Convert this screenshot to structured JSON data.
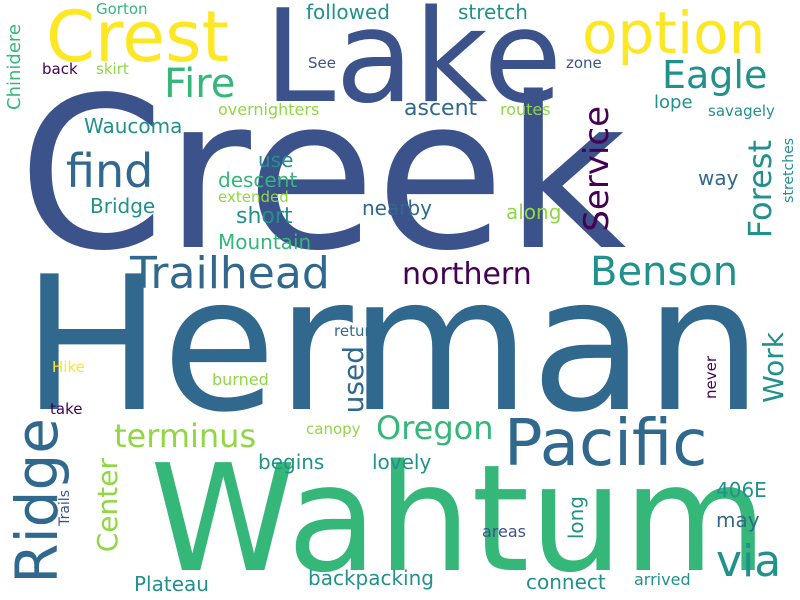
{
  "palette": {
    "dark_purple": "#440154",
    "indigo": "#3b528b",
    "blue": "#31688e",
    "teal": "#21918c",
    "green": "#35b779",
    "lime": "#90d743",
    "yellow": "#fde725"
  },
  "words": {
    "creek": "Creek",
    "herman": "Herman",
    "wahtum": "Wahtum",
    "lake": "Lake",
    "crest": "Crest",
    "option": "option",
    "pacific": "Pacific",
    "ridge": "Ridge",
    "trailhead": "Trailhead",
    "benson": "Benson",
    "eagle": "Eagle",
    "fire": "Fire",
    "find": "find",
    "service": "Service",
    "forest": "Forest",
    "northern": "northern",
    "via": "via",
    "terminus": "terminus",
    "oregon": "Oregon",
    "center": "Center",
    "work": "Work",
    "used": "used",
    "waucoma": "Waucoma",
    "ascent": "ascent",
    "followed": "followed",
    "stretch": "stretch",
    "chinidere": "Chinidere",
    "gorton": "Gorton",
    "back": "back",
    "skirt": "skirt",
    "see": "See",
    "zone": "zone",
    "overnighters": "overnighters",
    "routes": "routes",
    "lope": "lope",
    "savagely": "savagely",
    "use": "use",
    "descent": "descent",
    "extended": "extended",
    "bridge": "Bridge",
    "short": "short",
    "nearby": "nearby",
    "along": "along",
    "mountain": "Mountain",
    "way": "way",
    "stretches": "stretches",
    "return": "return",
    "hike": "Hike",
    "burned": "burned",
    "take": "take",
    "never": "never",
    "canopy": "canopy",
    "begins": "begins",
    "lovely": "lovely",
    "trails": "Trails",
    "e406": "406E",
    "may": "may",
    "areas": "areas",
    "long": "long",
    "plateau": "Plateau",
    "backpacking": "backpacking",
    "connect": "connect",
    "arrived": "arrived"
  }
}
